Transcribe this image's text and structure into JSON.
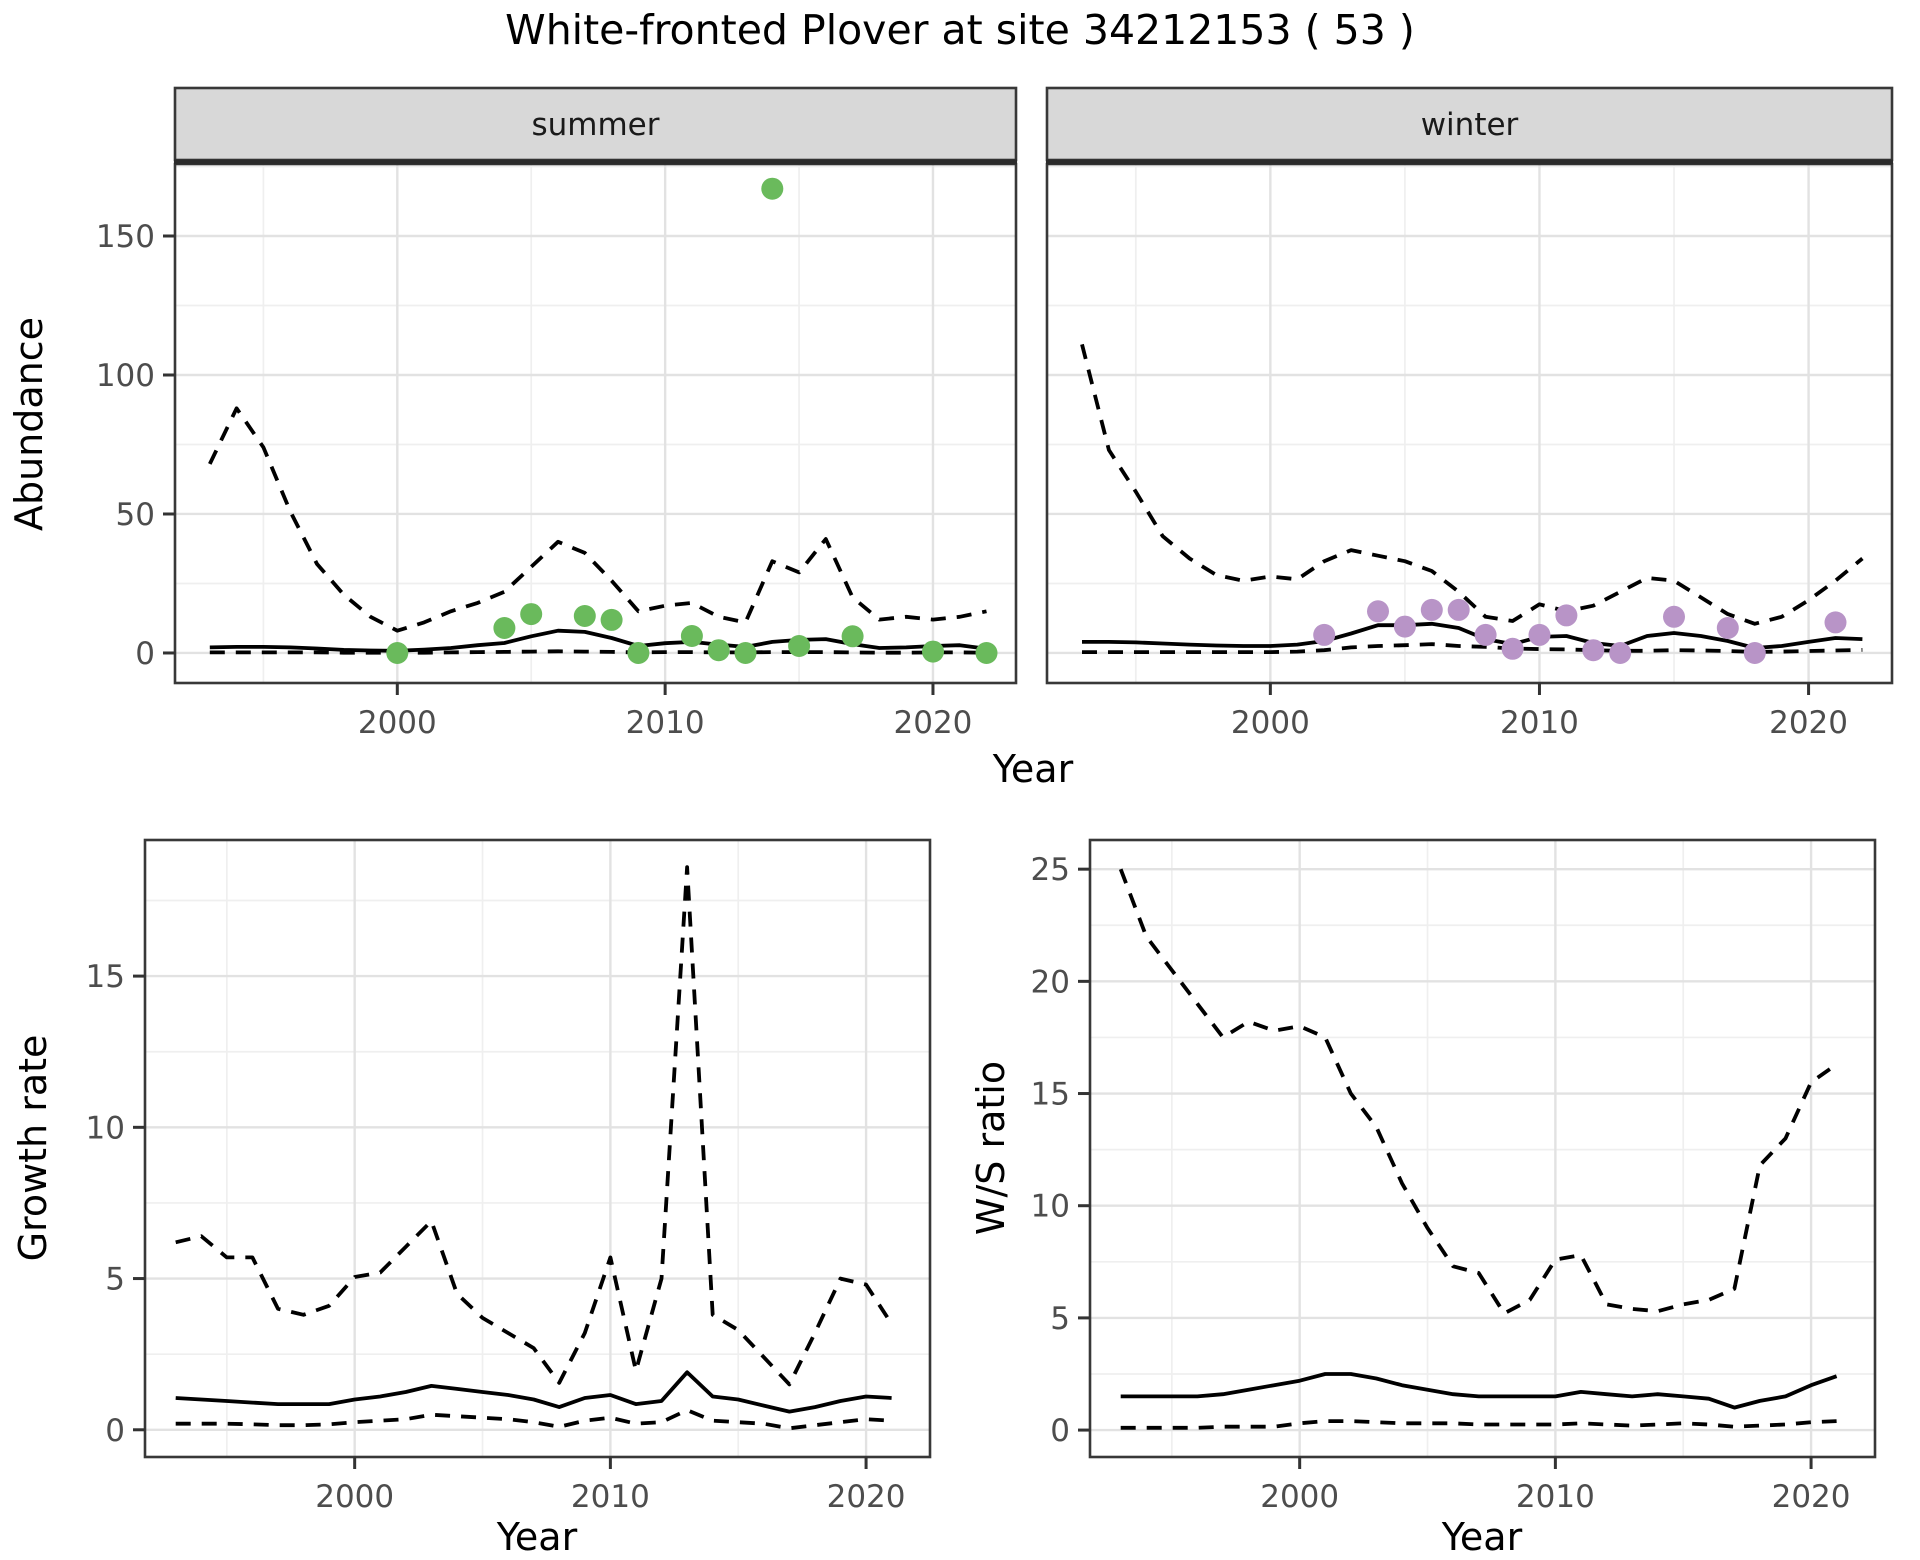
{
  "title": "White-fronted Plover at site 34212153 ( 53 )",
  "colors": {
    "summer_point": "#6ABA5C",
    "winter_point": "#B894C7",
    "line": "#000000",
    "strip_fill": "#D8D8D8",
    "panel_border": "#383838",
    "grid_major": "#E2E2E2",
    "grid_minor": "#EFEFEF",
    "tick_text": "#4D4D4D"
  },
  "labels": {
    "abundance_ylabel": "Abundance",
    "top_xlabel": "Year",
    "growth_ylabel": "Growth rate",
    "growth_xlabel": "Year",
    "ws_ylabel": "W/S ratio",
    "ws_xlabel": "Year"
  },
  "chart_data": [
    {
      "id": "summer",
      "type": "line",
      "strip_label": "summer",
      "x_ticks": [
        2000,
        2010,
        2020
      ],
      "y_ticks": [
        0,
        50,
        100,
        150
      ],
      "years": [
        1993,
        1994,
        1995,
        1996,
        1997,
        1998,
        1999,
        2000,
        2001,
        2002,
        2003,
        2004,
        2005,
        2006,
        2007,
        2008,
        2009,
        2010,
        2011,
        2012,
        2013,
        2014,
        2015,
        2016,
        2017,
        2018,
        2019,
        2020,
        2021,
        2022
      ],
      "series": [
        {
          "name": "upper_ci",
          "style": "dashed",
          "values": [
            68,
            88,
            74,
            51,
            32,
            21,
            13,
            8,
            11,
            15,
            18,
            22,
            31,
            40,
            36,
            26,
            15,
            17,
            18,
            13,
            11,
            33,
            29,
            41,
            20,
            12,
            13,
            12,
            13,
            15
          ]
        },
        {
          "name": "mean",
          "style": "solid",
          "values": [
            2,
            2.2,
            2.2,
            2,
            1.6,
            1.1,
            0.9,
            0.8,
            1.2,
            1.8,
            2.8,
            3.6,
            6,
            8,
            7.6,
            5.4,
            2.5,
            3.5,
            4,
            3,
            2.2,
            4,
            4.7,
            5,
            3.2,
            1.8,
            2,
            2.5,
            2.8,
            1.5
          ]
        },
        {
          "name": "lower_ci",
          "style": "dashed",
          "values": [
            0.2,
            0.2,
            0.2,
            0.2,
            0.2,
            0.1,
            0.1,
            0.1,
            0.1,
            0.2,
            0.3,
            0.4,
            0.5,
            0.6,
            0.5,
            0.4,
            0.2,
            0.3,
            0.3,
            0.2,
            0.2,
            0.3,
            0.3,
            0.3,
            0.2,
            0.1,
            0.1,
            0.2,
            0.2,
            0.1
          ]
        }
      ],
      "points": {
        "x": [
          2000,
          2004,
          2005,
          2007,
          2008,
          2009,
          2011,
          2012,
          2013,
          2014,
          2015,
          2017,
          2020,
          2022
        ],
        "y": [
          0,
          9,
          14,
          13.3,
          11.9,
          0,
          6.1,
          1,
          0,
          167,
          2.5,
          6,
          0.5,
          0
        ],
        "color": "#6ABA5C"
      }
    },
    {
      "id": "winter",
      "type": "line",
      "strip_label": "winter",
      "x_ticks": [
        2000,
        2010,
        2020
      ],
      "y_ticks": [
        0,
        50,
        100,
        150
      ],
      "years": [
        1993,
        1994,
        1995,
        1996,
        1997,
        1998,
        1999,
        2000,
        2001,
        2002,
        2003,
        2004,
        2005,
        2006,
        2007,
        2008,
        2009,
        2010,
        2011,
        2012,
        2013,
        2014,
        2015,
        2016,
        2017,
        2018,
        2019,
        2020,
        2021,
        2022
      ],
      "series": [
        {
          "name": "upper_ci",
          "style": "dashed",
          "values": [
            111,
            73,
            58,
            42,
            34,
            28,
            26,
            27.5,
            26.5,
            33,
            37,
            35,
            33,
            29.5,
            22,
            13,
            11.5,
            17.5,
            15,
            17,
            22,
            27,
            26,
            20,
            14,
            10.5,
            13,
            19,
            26,
            34
          ]
        },
        {
          "name": "mean",
          "style": "solid",
          "values": [
            4,
            4,
            3.8,
            3.4,
            3,
            2.7,
            2.5,
            2.5,
            3,
            4.3,
            7,
            10,
            10,
            10.5,
            9,
            5,
            3.2,
            5.8,
            6.1,
            3.6,
            2.5,
            6.1,
            7.2,
            6.1,
            4.3,
            1.8,
            2.5,
            4,
            5.4,
            5
          ]
        },
        {
          "name": "lower_ci",
          "style": "dashed",
          "values": [
            0.3,
            0.3,
            0.3,
            0.3,
            0.3,
            0.3,
            0.3,
            0.3,
            0.5,
            1,
            2,
            2.5,
            2.8,
            3.2,
            2.5,
            2.2,
            1.6,
            1.4,
            1.3,
            1,
            0.8,
            0.8,
            1,
            0.9,
            0.7,
            0.4,
            0.5,
            0.7,
            0.9,
            1.1
          ]
        }
      ],
      "points": {
        "x": [
          2002,
          2004,
          2005,
          2006,
          2007,
          2008,
          2009,
          2010,
          2011,
          2012,
          2013,
          2015,
          2017,
          2018,
          2021
        ],
        "y": [
          6.5,
          15,
          9.5,
          15.5,
          15.5,
          6.5,
          1.5,
          6.5,
          13.5,
          1,
          0,
          13,
          9,
          0,
          11
        ],
        "color": "#B894C7"
      }
    },
    {
      "id": "growth",
      "type": "line",
      "strip_label": null,
      "x_ticks": [
        2000,
        2010,
        2020
      ],
      "y_ticks": [
        0,
        5,
        10,
        15
      ],
      "years": [
        1993,
        1994,
        1995,
        1996,
        1997,
        1998,
        1999,
        2000,
        2001,
        2002,
        2003,
        2004,
        2005,
        2006,
        2007,
        2008,
        2009,
        2010,
        2011,
        2012,
        2013,
        2014,
        2015,
        2016,
        2017,
        2018,
        2019,
        2020,
        2021
      ],
      "series": [
        {
          "name": "upper_ci",
          "style": "dashed",
          "values": [
            6.2,
            6.4,
            5.7,
            5.7,
            4.0,
            3.8,
            4.1,
            5.05,
            5.2,
            6.05,
            6.9,
            4.5,
            3.7,
            3.2,
            2.7,
            1.55,
            3.2,
            5.7,
            1.95,
            5.0,
            18.6,
            3.8,
            3.3,
            2.4,
            1.5,
            3.2,
            5.0,
            4.8,
            3.5
          ]
        },
        {
          "name": "mean",
          "style": "solid",
          "values": [
            1.05,
            1.0,
            0.95,
            0.9,
            0.85,
            0.85,
            0.85,
            1.0,
            1.1,
            1.25,
            1.45,
            1.35,
            1.25,
            1.15,
            1.0,
            0.75,
            1.05,
            1.15,
            0.85,
            0.95,
            1.9,
            1.1,
            1.0,
            0.8,
            0.6,
            0.75,
            0.95,
            1.1,
            1.05
          ]
        },
        {
          "name": "lower_ci",
          "style": "dashed",
          "values": [
            0.2,
            0.2,
            0.2,
            0.18,
            0.15,
            0.15,
            0.18,
            0.25,
            0.3,
            0.35,
            0.5,
            0.45,
            0.4,
            0.35,
            0.25,
            0.1,
            0.3,
            0.4,
            0.2,
            0.25,
            0.65,
            0.3,
            0.25,
            0.2,
            0.05,
            0.15,
            0.25,
            0.35,
            0.3
          ]
        }
      ],
      "points": null
    },
    {
      "id": "ws",
      "type": "line",
      "strip_label": null,
      "x_ticks": [
        2000,
        2010,
        2020
      ],
      "y_ticks": [
        0,
        5,
        10,
        15,
        20,
        25
      ],
      "years": [
        1993,
        1994,
        1995,
        1996,
        1997,
        1998,
        1999,
        2000,
        2001,
        2002,
        2003,
        2004,
        2005,
        2006,
        2007,
        2008,
        2009,
        2010,
        2011,
        2012,
        2013,
        2014,
        2015,
        2016,
        2017,
        2018,
        2019,
        2020,
        2021
      ],
      "series": [
        {
          "name": "upper_ci",
          "style": "dashed",
          "values": [
            25,
            22,
            20.5,
            19,
            17.5,
            18.2,
            17.8,
            18.0,
            17.5,
            15,
            13.5,
            11,
            9,
            7.3,
            7.0,
            5.2,
            5.8,
            7.6,
            7.8,
            5.6,
            5.4,
            5.3,
            5.6,
            5.8,
            6.3,
            11.8,
            13.0,
            15.5,
            16.3
          ]
        },
        {
          "name": "mean",
          "style": "solid",
          "values": [
            1.5,
            1.5,
            1.5,
            1.5,
            1.6,
            1.8,
            2.0,
            2.2,
            2.5,
            2.5,
            2.3,
            2.0,
            1.8,
            1.6,
            1.5,
            1.5,
            1.5,
            1.5,
            1.7,
            1.6,
            1.5,
            1.6,
            1.5,
            1.4,
            1.0,
            1.3,
            1.5,
            2.0,
            2.4
          ]
        },
        {
          "name": "lower_ci",
          "style": "dashed",
          "values": [
            0.1,
            0.1,
            0.1,
            0.1,
            0.15,
            0.15,
            0.15,
            0.3,
            0.4,
            0.4,
            0.35,
            0.3,
            0.3,
            0.3,
            0.25,
            0.25,
            0.25,
            0.25,
            0.3,
            0.25,
            0.2,
            0.25,
            0.3,
            0.25,
            0.15,
            0.2,
            0.25,
            0.35,
            0.4
          ]
        }
      ],
      "points": null
    }
  ]
}
